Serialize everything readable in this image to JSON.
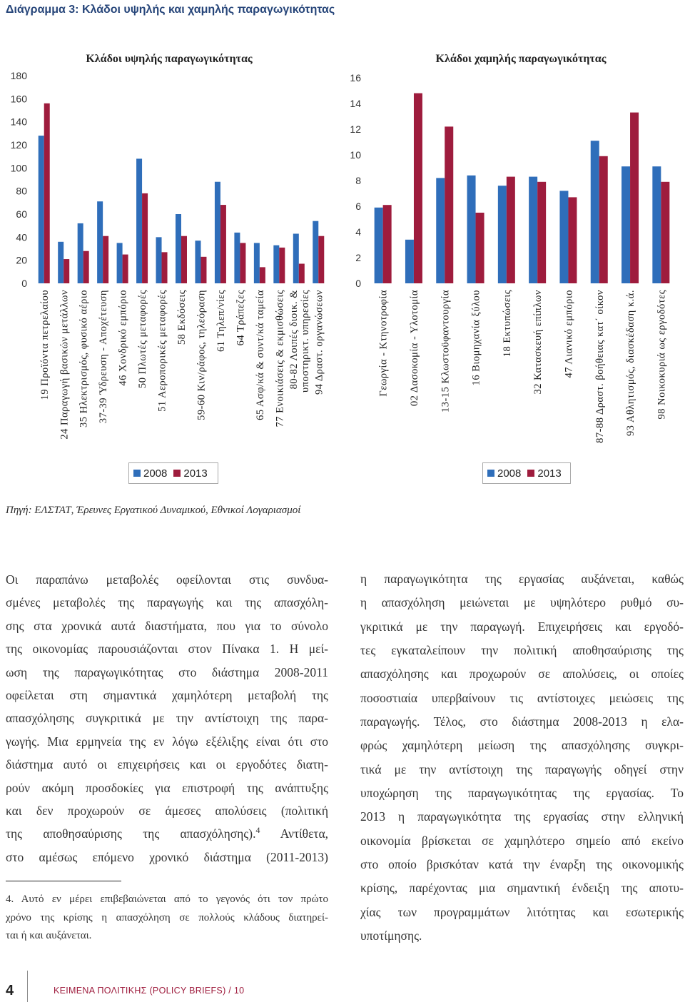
{
  "figure_title": "Διάγραμμα 3: Κλάδοι υψηλής και χαμηλής παραγωγικότητας",
  "chart_data": [
    {
      "type": "bar",
      "title": "Κλάδοι υψηλής παραγωγικότητας",
      "categories": [
        "19 Προϊόντα πετρελαίου",
        "24 Παραγωγή βασικών μετάλλων",
        "35 Ηλεκτρισμός, φυσικό αέριο",
        "37-39 Ύδρευση - Αποχέτευση",
        "46 Χονδρικό εμπόριο",
        "50 Πλωτές μεταφορές",
        "51 Αεροπορικές μεταφορές",
        "58 Εκδόσεις",
        "59-60 Κιν/ράφος, τηλεόραση",
        "61 Τηλεπ/νίες",
        "64 Τράπεζες",
        "65 Ασφ/κά & συντ/κά ταμεία",
        "77 Ενοικιάσεις & εκμισθώσεις",
        "80-82 Λοιπές διοικ. &\nυποστηρικτ. υπηρεσίες",
        "94 Δραστ. οργανώσεων"
      ],
      "series": [
        {
          "name": "2008",
          "color": "#2f6eba",
          "values": [
            128,
            36,
            52,
            71,
            35,
            108,
            40,
            60,
            37,
            88,
            44,
            35,
            33,
            43,
            54
          ]
        },
        {
          "name": "2013",
          "color": "#9e1c3d",
          "values": [
            156,
            21,
            28,
            41,
            25,
            78,
            27,
            41,
            23,
            68,
            35,
            14,
            31,
            17,
            41
          ]
        }
      ],
      "yticks": [
        0,
        20,
        40,
        60,
        80,
        100,
        120,
        140,
        160,
        180
      ],
      "ylim": [
        0,
        180
      ],
      "grid": false,
      "legend": "bottom"
    },
    {
      "type": "bar",
      "title": "Κλάδοι χαμηλής παραγωγικότητας",
      "categories": [
        "Γεωργία - Κτηνοτροφία",
        "02 Δασοκομία - Υλοτομία",
        "13-15 Κλωστοϋφαντουργία",
        "16 Βιομηχανία ξύλου",
        "18 Εκτυπώσεις",
        "32 Κατασκευή επίπλων",
        "47 Λιανικό εμπόριο",
        "87-88 Δραστ. βοήθειας κατ΄ οίκον",
        "93 Αθλητισμός, διασκέδαση κ.ά.",
        "98 Νοικοκυριά ως εργοδότες"
      ],
      "series": [
        {
          "name": "2008",
          "color": "#2f6eba",
          "values": [
            5.9,
            3.4,
            8.2,
            8.4,
            7.6,
            8.3,
            7.2,
            11.1,
            9.1,
            9.1
          ]
        },
        {
          "name": "2013",
          "color": "#9e1c3d",
          "values": [
            6.1,
            14.8,
            12.2,
            5.5,
            8.3,
            7.9,
            6.7,
            9.9,
            13.3,
            7.9
          ]
        }
      ],
      "yticks": [
        0,
        2,
        4,
        6,
        8,
        10,
        12,
        14,
        16
      ],
      "ylim": [
        0,
        16
      ],
      "grid": false,
      "legend": "bottom"
    }
  ],
  "source_note": "Πηγή: ΕΛΣΤΑΤ, Έρευνες Εργατικού Δυναμικού, Εθνικοί Λογαριασμοί",
  "body": {
    "left_column": [
      "Οι παραπάνω μεταβολές οφείλονται στις συνδυα-",
      "σμένες μεταβολές της παραγωγής και της απασχόλη-",
      "σης στα χρονικά αυτά διαστήματα, που για το σύνολο",
      "της οικονομίας παρουσιάζονται στον Πίνακα 1. Η μεί-",
      "ωση της παραγωγικότητας στο διάστημα 2008-2011",
      "οφείλεται στη σημαντικά χαμηλότερη μεταβολή της",
      "απασχόλησης συγκριτικά με την αντίστοιχη της παρα-",
      "γωγής. Μια ερμηνεία της εν λόγω εξέλιξης είναι ότι στο",
      "διάστημα αυτό οι επιχειρήσεις και οι εργοδότες διατη-",
      "ρούν ακόμη προσδοκίες για επιστροφή της ανάπτυξης",
      "και δεν προχωρούν σε άμεσες απολύσεις (πολιτική",
      {
        "parts": [
          {
            "text": "της αποθησαύρισης της απασχόλησης)."
          },
          {
            "sup": "4"
          },
          {
            "text": " Αντίθετα,"
          }
        ]
      },
      "στο αμέσως επόμενο χρονικό διάστημα (2011-2013)"
    ],
    "right_column": [
      "η παραγωγικότητα της εργασίας αυξάνεται, καθώς",
      "η απασχόληση μειώνεται με υψηλότερο ρυθμό συ-",
      "γκριτικά με την παραγωγή. Επιχειρήσεις και εργοδό-",
      "τες εγκαταλείπουν την πολιτική αποθησαύρισης της",
      "απασχόλησης και προχωρούν σε απολύσεις, οι οποίες",
      "ποσοστιαία υπερβαίνουν τις αντίστοιχες μειώσεις της",
      "παραγωγής. Τέλος, στο διάστημα 2008-2013 η ελα-",
      "φρώς χαμηλότερη μείωση της απασχόλησης συγκρι-",
      "τικά με την αντίστοιχη της παραγωγής οδηγεί στην",
      "υποχώρηση της παραγωγικότητας της εργασίας. Το",
      "2013 η παραγωγικότητα της εργασίας στην ελληνική",
      "οικονομία βρίσκεται σε χαμηλότερο σημείο από εκείνο",
      "στο οποίο βρισκόταν κατά την έναρξη της οικονομικής",
      "κρίσης, παρέχοντας μια σημαντική ένδειξη της αποτυ-",
      "χίας των προγραμμάτων λιτότητας και εσωτερικής",
      "υποτίμησης."
    ]
  },
  "footnote": {
    "lines": [
      "4. Αυτό εν μέρει επιβεβαιώνεται από το γεγονός ότι τον πρώτο",
      "χρόνο της κρίσης η απασχόληση σε πολλούς κλάδους διατηρεί-",
      "ται ή και αυξάνεται."
    ]
  },
  "footer": {
    "page_number": "4",
    "publication": "ΚΕΙΜΕΝΑ ΠΟΛΙΤΙΚΗΣ (POLICY BRIEFS) / 10"
  },
  "colors": {
    "title": "#27467a",
    "footer_accent": "#9e1c3d"
  }
}
